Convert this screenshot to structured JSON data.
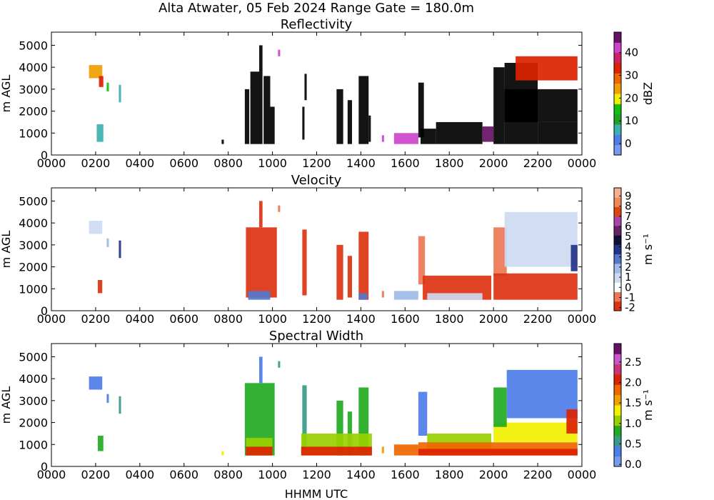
{
  "figure": {
    "suptitle": "Alta Atwater, 05 Feb 2024 Range Gate = 180.0m",
    "xlabel": "HHMM UTC"
  },
  "chart_data": [
    {
      "type": "heatmap",
      "title": "Reflectivity",
      "ylabel": "m AGL",
      "xticks": [
        "0000",
        "0200",
        "0400",
        "0600",
        "0800",
        "1000",
        "1200",
        "1400",
        "1600",
        "1800",
        "2000",
        "2200",
        "0000"
      ],
      "xlim": [
        0,
        24
      ],
      "yticks": [
        0,
        1000,
        2000,
        3000,
        4000,
        5000
      ],
      "ylim": [
        0,
        5600
      ],
      "colorbar": {
        "label": "dBZ",
        "range": [
          -5,
          49
        ],
        "ticks": [
          "0",
          "10",
          "20",
          "30",
          "40"
        ],
        "tick_values": [
          0,
          10,
          20,
          30,
          40
        ],
        "colors": [
          "#7799ee",
          "#4d7de8",
          "#3cb0b0",
          "#22a022",
          "#11c011",
          "#f0f000",
          "#f0a000",
          "#ee6600",
          "#dd2200",
          "#cc2266",
          "#cc44cc",
          "#661166"
        ]
      },
      "cells": [
        [
          1.7,
          2.3,
          3500,
          4100,
          6
        ],
        [
          2.15,
          2.35,
          3100,
          3600,
          8
        ],
        [
          2.5,
          2.6,
          2900,
          3300,
          4
        ],
        [
          3.05,
          3.15,
          2400,
          3200,
          2
        ],
        [
          2.05,
          2.35,
          600,
          1400,
          2
        ],
        [
          7.7,
          7.8,
          500,
          700,
          12
        ],
        [
          8.75,
          8.95,
          500,
          3000,
          13
        ],
        [
          9.0,
          9.4,
          500,
          3800,
          18
        ],
        [
          9.4,
          9.55,
          500,
          5000,
          13
        ],
        [
          9.6,
          9.9,
          500,
          3600,
          16
        ],
        [
          9.9,
          10.1,
          500,
          2200,
          13
        ],
        [
          10.25,
          10.35,
          4500,
          4800,
          10
        ],
        [
          11.35,
          11.45,
          700,
          2200,
          18
        ],
        [
          11.45,
          11.55,
          2500,
          3700,
          12
        ],
        [
          12.9,
          13.2,
          500,
          3000,
          17
        ],
        [
          13.4,
          13.6,
          500,
          2500,
          16
        ],
        [
          13.9,
          14.35,
          500,
          3600,
          15
        ],
        [
          14.35,
          14.45,
          600,
          1800,
          12
        ],
        [
          14.95,
          15.05,
          600,
          900,
          10
        ],
        [
          15.5,
          16.6,
          500,
          1000,
          10
        ],
        [
          16.6,
          16.85,
          800,
          3300,
          12
        ],
        [
          16.7,
          17.4,
          500,
          1200,
          19
        ],
        [
          17.4,
          19.5,
          500,
          1500,
          12
        ],
        [
          19.5,
          20.0,
          600,
          1300,
          11
        ],
        [
          20.0,
          20.5,
          500,
          4000,
          13
        ],
        [
          20.5,
          22.0,
          500,
          4200,
          12
        ],
        [
          20.5,
          23.8,
          1500,
          3000,
          20
        ],
        [
          21.0,
          23.8,
          3400,
          4500,
          8
        ],
        [
          22.0,
          23.8,
          500,
          1500,
          12
        ]
      ]
    },
    {
      "type": "heatmap",
      "title": "Velocity",
      "ylabel": "m AGL",
      "xticks": [
        "0000",
        "0200",
        "0400",
        "0600",
        "0800",
        "1000",
        "1200",
        "1400",
        "1600",
        "1800",
        "2000",
        "2200",
        "0000"
      ],
      "xlim": [
        0,
        24
      ],
      "yticks": [
        0,
        1000,
        2000,
        3000,
        4000,
        5000
      ],
      "ylim": [
        0,
        5600
      ],
      "colorbar": {
        "label": "m s⁻¹",
        "range": [
          -2.3,
          9.8
        ],
        "ticks": [
          "-2",
          "-1",
          "0",
          "1",
          "2",
          "3",
          "4",
          "5",
          "6",
          "7",
          "8",
          "9"
        ],
        "tick_values": [
          -2,
          -1,
          0,
          1,
          2,
          3,
          4,
          5,
          6,
          7,
          8,
          9
        ],
        "colors": [
          "#dd3311",
          "#ee7755",
          "#ffffff",
          "#ccdaf2",
          "#a0bbe8",
          "#5577cc",
          "#223388",
          "#111133",
          "#662266",
          "#aa44aa",
          "#dd4411",
          "#f08855",
          "#f4b090"
        ]
      },
      "cells": [
        [
          1.7,
          2.3,
          3500,
          4100,
          3
        ],
        [
          2.5,
          2.6,
          2900,
          3300,
          4
        ],
        [
          3.05,
          3.15,
          2400,
          3200,
          6
        ],
        [
          2.1,
          2.3,
          800,
          1400,
          0
        ],
        [
          8.8,
          10.2,
          600,
          3800,
          0
        ],
        [
          9.4,
          9.55,
          3800,
          5000,
          0
        ],
        [
          8.9,
          9.9,
          500,
          900,
          5
        ],
        [
          10.25,
          10.35,
          4500,
          4800,
          1
        ],
        [
          11.35,
          11.55,
          700,
          3700,
          0
        ],
        [
          12.9,
          13.2,
          500,
          3000,
          0
        ],
        [
          13.4,
          13.6,
          600,
          2500,
          0
        ],
        [
          13.9,
          14.35,
          500,
          3600,
          0
        ],
        [
          13.9,
          14.3,
          500,
          800,
          5
        ],
        [
          14.95,
          15.05,
          600,
          900,
          1
        ],
        [
          15.5,
          16.6,
          500,
          900,
          4
        ],
        [
          16.6,
          16.9,
          1200,
          3400,
          1
        ],
        [
          16.8,
          19.9,
          500,
          1600,
          0
        ],
        [
          17.0,
          19.5,
          500,
          800,
          3
        ],
        [
          20.0,
          20.6,
          1600,
          3800,
          1
        ],
        [
          20.0,
          23.8,
          500,
          1700,
          0
        ],
        [
          20.5,
          23.8,
          2000,
          4500,
          3
        ],
        [
          23.5,
          23.8,
          1800,
          3000,
          6
        ]
      ]
    },
    {
      "type": "heatmap",
      "title": "Spectral Width",
      "ylabel": "m AGL",
      "xticks": [
        "0000",
        "0200",
        "0400",
        "0600",
        "0800",
        "1000",
        "1200",
        "1400",
        "1600",
        "1800",
        "2000",
        "2200",
        "0000"
      ],
      "xlim": [
        0,
        24
      ],
      "yticks": [
        0,
        1000,
        2000,
        3000,
        4000,
        5000
      ],
      "ylim": [
        0,
        5600
      ],
      "colorbar": {
        "label": "m s⁻¹",
        "range": [
          -0.05,
          2.95
        ],
        "ticks": [
          "0.0",
          "0.5",
          "1.0",
          "1.5",
          "2.0",
          "2.5"
        ],
        "tick_values": [
          0,
          0.5,
          1,
          1.5,
          2,
          2.5
        ],
        "colors": [
          "#7799ee",
          "#4d7de8",
          "#3a9a88",
          "#22aa22",
          "#99d000",
          "#f0f000",
          "#f0a000",
          "#ee6600",
          "#dd2200",
          "#cc3377",
          "#cc55cc",
          "#661166"
        ]
      },
      "cells": [
        [
          1.7,
          2.3,
          3500,
          4100,
          1
        ],
        [
          2.5,
          2.6,
          2900,
          3300,
          1
        ],
        [
          3.05,
          3.15,
          2400,
          3200,
          2
        ],
        [
          2.1,
          2.35,
          700,
          1400,
          3
        ],
        [
          7.7,
          7.8,
          500,
          700,
          5
        ],
        [
          8.75,
          10.1,
          500,
          3800,
          3
        ],
        [
          9.4,
          9.55,
          3800,
          5000,
          1
        ],
        [
          8.8,
          10.0,
          500,
          1300,
          4
        ],
        [
          8.8,
          10.0,
          500,
          900,
          8
        ],
        [
          10.25,
          10.35,
          4500,
          4800,
          2
        ],
        [
          11.35,
          11.55,
          700,
          3700,
          2
        ],
        [
          12.9,
          13.2,
          500,
          3000,
          3
        ],
        [
          13.4,
          13.6,
          500,
          2500,
          3
        ],
        [
          13.9,
          14.35,
          500,
          3600,
          3
        ],
        [
          11.3,
          14.5,
          500,
          1500,
          4
        ],
        [
          11.3,
          14.5,
          500,
          900,
          8
        ],
        [
          14.95,
          15.05,
          600,
          900,
          6
        ],
        [
          15.5,
          16.6,
          500,
          1000,
          7
        ],
        [
          16.6,
          17.0,
          1400,
          3400,
          1
        ],
        [
          17.0,
          19.9,
          500,
          1500,
          4
        ],
        [
          16.6,
          23.8,
          500,
          1100,
          7
        ],
        [
          16.6,
          23.8,
          500,
          800,
          8
        ],
        [
          20.0,
          23.8,
          1100,
          2000,
          5
        ],
        [
          20.0,
          20.6,
          1800,
          3600,
          3
        ],
        [
          20.6,
          23.8,
          2200,
          4400,
          1
        ],
        [
          23.3,
          23.8,
          1500,
          2600,
          8
        ]
      ]
    }
  ]
}
